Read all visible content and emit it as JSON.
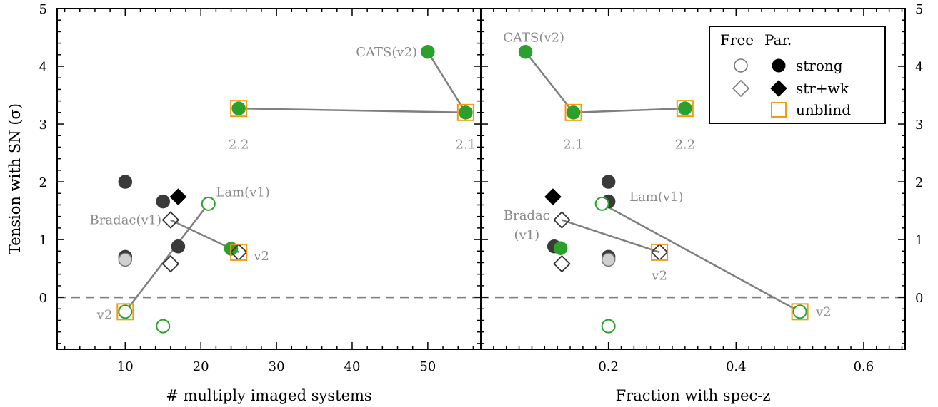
{
  "colors": {
    "axis": "#000000",
    "connector": "#7f7f7f",
    "label_gray": "#8a8a8a",
    "green": "#2ca02c",
    "dark": "#3a3a3a",
    "black": "#000000",
    "light_gray": "#d0d0d0",
    "orange": "#f39c12",
    "open_outline": "#7a7a7a"
  },
  "chart_data": [
    {
      "type": "scatter",
      "panel": "left",
      "xlabel": "# multiply imaged systems",
      "ylabel": "Tension with SN (σ)",
      "xlim": [
        1,
        57
      ],
      "ylim": [
        -0.9,
        5.0
      ],
      "xticks": [
        10,
        20,
        30,
        40,
        50
      ],
      "xtick_labels": [
        "10",
        "20",
        "30",
        "40",
        "50"
      ],
      "yticks": [
        0,
        1,
        2,
        3,
        4,
        5
      ],
      "ytick_labels": [
        "0",
        "1",
        "2",
        "3",
        "4",
        "5"
      ],
      "reference_line": {
        "y": 0,
        "style": "dashed"
      },
      "points": [
        {
          "x": 10,
          "y": 2.0,
          "marker": "circle",
          "fill": "dark"
        },
        {
          "x": 10,
          "y": 0.7,
          "marker": "circle",
          "fill": "dark"
        },
        {
          "x": 10,
          "y": 0.65,
          "marker": "circle",
          "fill": "light"
        },
        {
          "x": 15,
          "y": 1.66,
          "marker": "circle",
          "fill": "dark"
        },
        {
          "x": 17,
          "y": 0.88,
          "marker": "circle",
          "fill": "dark"
        },
        {
          "x": 17,
          "y": 1.74,
          "marker": "diamond",
          "fill": "black"
        },
        {
          "x": 16,
          "y": 1.34,
          "marker": "diamond",
          "fill": "open"
        },
        {
          "x": 16,
          "y": 0.58,
          "marker": "diamond",
          "fill": "open"
        },
        {
          "x": 24,
          "y": 0.84,
          "marker": "circle",
          "fill": "green"
        },
        {
          "x": 25,
          "y": 0.78,
          "marker": "diamond",
          "fill": "open",
          "square": true
        },
        {
          "x": 21,
          "y": 1.62,
          "marker": "circle",
          "fill": "green-open"
        },
        {
          "x": 10,
          "y": -0.25,
          "marker": "circle",
          "fill": "green-open",
          "square": true
        },
        {
          "x": 15,
          "y": -0.5,
          "marker": "circle",
          "fill": "green-open"
        },
        {
          "x": 25,
          "y": 3.27,
          "marker": "circle",
          "fill": "green",
          "square": true
        },
        {
          "x": 50,
          "y": 4.25,
          "marker": "circle",
          "fill": "green"
        },
        {
          "x": 55,
          "y": 3.2,
          "marker": "circle",
          "fill": "green",
          "square": true
        }
      ],
      "connectors": [
        [
          [
            50,
            4.25
          ],
          [
            55,
            3.2
          ]
        ],
        [
          [
            25,
            3.27
          ],
          [
            55,
            3.2
          ]
        ],
        [
          [
            16,
            1.34
          ],
          [
            25,
            0.78
          ]
        ],
        [
          [
            10,
            -0.25
          ],
          [
            21,
            1.62
          ]
        ]
      ],
      "annotations": [
        {
          "text": "CATS(v2)",
          "x": 48.6,
          "y": 4.25,
          "anchor": "end"
        },
        {
          "text": "2.2",
          "x": 25,
          "y": 2.65,
          "anchor": "middle"
        },
        {
          "text": "2.1",
          "x": 55,
          "y": 2.65,
          "anchor": "middle"
        },
        {
          "text": "Lam(v1)",
          "x": 22,
          "y": 1.82,
          "anchor": "start"
        },
        {
          "text": "Bradac(v1)",
          "x": 14.8,
          "y": 1.34,
          "anchor": "end"
        },
        {
          "text": "v2",
          "x": 27,
          "y": 0.72,
          "anchor": "start"
        },
        {
          "text": "v2",
          "x": 8.3,
          "y": -0.3,
          "anchor": "end"
        }
      ]
    },
    {
      "type": "scatter",
      "panel": "right",
      "xlabel": "Fraction with spec-z",
      "xlim": [
        0.0,
        0.665
      ],
      "ylim": [
        -0.9,
        5.0
      ],
      "xticks": [
        0.2,
        0.4,
        0.6
      ],
      "xtick_labels": [
        "0.2",
        "0.4",
        "0.6"
      ],
      "yticks": [
        0,
        1,
        2,
        3,
        4,
        5
      ],
      "ytick_labels": [
        "0",
        "1",
        "2",
        "3",
        "4",
        "5"
      ],
      "reference_line": {
        "y": 0,
        "style": "dashed"
      },
      "points": [
        {
          "x": 0.2,
          "y": 2.0,
          "marker": "circle",
          "fill": "dark"
        },
        {
          "x": 0.2,
          "y": 1.66,
          "marker": "circle",
          "fill": "dark"
        },
        {
          "x": 0.2,
          "y": 0.7,
          "marker": "circle",
          "fill": "dark"
        },
        {
          "x": 0.2,
          "y": 0.65,
          "marker": "circle",
          "fill": "light"
        },
        {
          "x": 0.115,
          "y": 0.88,
          "marker": "circle",
          "fill": "dark"
        },
        {
          "x": 0.125,
          "y": 0.85,
          "marker": "circle",
          "fill": "green"
        },
        {
          "x": 0.113,
          "y": 1.74,
          "marker": "diamond",
          "fill": "black"
        },
        {
          "x": 0.127,
          "y": 1.34,
          "marker": "diamond",
          "fill": "open"
        },
        {
          "x": 0.127,
          "y": 0.58,
          "marker": "diamond",
          "fill": "open"
        },
        {
          "x": 0.28,
          "y": 0.78,
          "marker": "diamond",
          "fill": "open",
          "square": true
        },
        {
          "x": 0.19,
          "y": 1.62,
          "marker": "circle",
          "fill": "green-open"
        },
        {
          "x": 0.5,
          "y": -0.25,
          "marker": "circle",
          "fill": "green-open",
          "square": true
        },
        {
          "x": 0.2,
          "y": -0.5,
          "marker": "circle",
          "fill": "green-open"
        },
        {
          "x": 0.07,
          "y": 4.25,
          "marker": "circle",
          "fill": "green"
        },
        {
          "x": 0.145,
          "y": 3.2,
          "marker": "circle",
          "fill": "green",
          "square": true
        },
        {
          "x": 0.32,
          "y": 3.27,
          "marker": "circle",
          "fill": "green",
          "square": true
        }
      ],
      "connectors": [
        [
          [
            0.07,
            4.25
          ],
          [
            0.145,
            3.2
          ]
        ],
        [
          [
            0.145,
            3.2
          ],
          [
            0.32,
            3.27
          ]
        ],
        [
          [
            0.127,
            1.34
          ],
          [
            0.28,
            0.78
          ]
        ],
        [
          [
            0.19,
            1.62
          ],
          [
            0.5,
            -0.25
          ]
        ]
      ],
      "annotations": [
        {
          "text": "CATS(v2)",
          "x": 0.035,
          "y": 4.5,
          "anchor": "start"
        },
        {
          "text": "2.1",
          "x": 0.145,
          "y": 2.65,
          "anchor": "middle"
        },
        {
          "text": "2.2",
          "x": 0.32,
          "y": 2.65,
          "anchor": "middle"
        },
        {
          "text": "Lam(v1)",
          "x": 0.233,
          "y": 1.74,
          "anchor": "start"
        },
        {
          "text": "Bradac",
          "x": 0.072,
          "y": 1.42,
          "anchor": "middle"
        },
        {
          "text": "(v1)",
          "x": 0.072,
          "y": 1.08,
          "anchor": "middle"
        },
        {
          "text": "v2",
          "x": 0.28,
          "y": 0.38,
          "anchor": "middle"
        },
        {
          "text": "v2",
          "x": 0.525,
          "y": -0.25,
          "anchor": "start"
        }
      ],
      "legend": {
        "position": "top-right",
        "header": [
          "Free",
          "Par."
        ],
        "entries": [
          {
            "label": "strong",
            "free_marker": "circle",
            "par_marker": "circle"
          },
          {
            "label": "str+wk",
            "free_marker": "diamond",
            "par_marker": "diamond"
          },
          {
            "label": "unblind",
            "marker": "square"
          }
        ]
      }
    }
  ]
}
